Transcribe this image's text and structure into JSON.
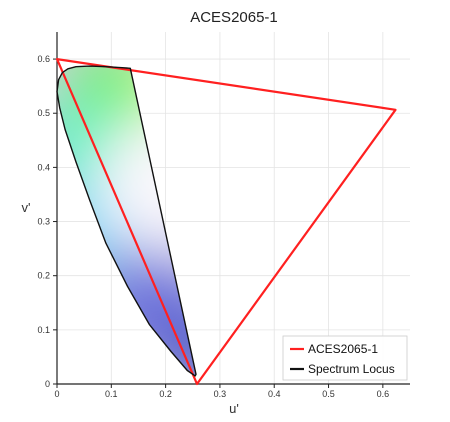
{
  "chart_data": {
    "type": "line",
    "title": "ACES2065-1",
    "xlabel": "u'",
    "ylabel": "v'",
    "xlim": [
      0,
      0.65
    ],
    "ylim": [
      0,
      0.65
    ],
    "x_ticks": [
      0,
      0.1,
      0.2,
      0.3,
      0.4,
      0.5,
      0.6
    ],
    "y_ticks": [
      0,
      0.1,
      0.2,
      0.3,
      0.4,
      0.5,
      0.6
    ],
    "x_tick_labels": [
      "0",
      "0.1",
      "0.2",
      "0.3",
      "0.4",
      "0.5",
      "0.6"
    ],
    "y_tick_labels": [
      "0",
      "0.1",
      "0.2",
      "0.3",
      "0.4",
      "0.5",
      "0.6"
    ],
    "grid": true,
    "legend_position": "bottom-right",
    "series": [
      {
        "name": "ACES2065-1",
        "color": "#ff2020",
        "closed": true,
        "x": [
          0.0,
          0.6233,
          0.2577
        ],
        "y": [
          0.6,
          0.5064,
          0.0
        ]
      },
      {
        "name": "Spectrum Locus",
        "color": "#111111",
        "closed": true,
        "x": [
          0.256,
          0.2545,
          0.24,
          0.21,
          0.17,
          0.13,
          0.09,
          0.06,
          0.035,
          0.015,
          0.005,
          0.0,
          0.003,
          0.01,
          0.02,
          0.035,
          0.06,
          0.09,
          0.12,
          0.135
        ],
        "y": [
          0.018,
          0.015,
          0.025,
          0.06,
          0.11,
          0.18,
          0.26,
          0.34,
          0.41,
          0.47,
          0.51,
          0.54,
          0.562,
          0.575,
          0.582,
          0.586,
          0.587,
          0.586,
          0.584,
          0.583
        ]
      }
    ]
  }
}
